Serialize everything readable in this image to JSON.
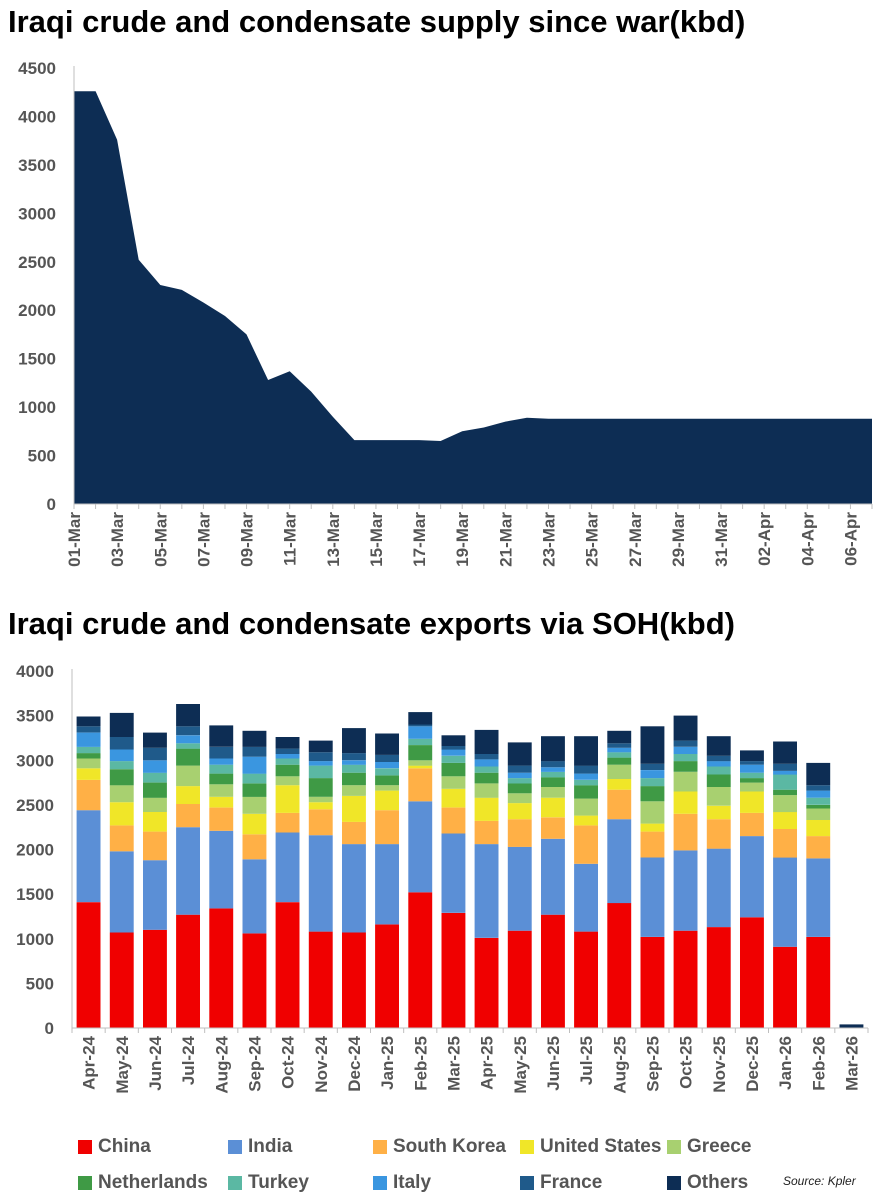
{
  "chart_data": [
    {
      "type": "area",
      "title": "Iraqi crude and condensate supply since war(kbd)",
      "color": "#0d2d54",
      "ylim": [
        0,
        4500
      ],
      "yticks": [
        0,
        500,
        1000,
        1500,
        2000,
        2500,
        3000,
        3500,
        4000,
        4500
      ],
      "x_tick_labels": [
        "01-Mar",
        "03-Mar",
        "05-Mar",
        "07-Mar",
        "09-Mar",
        "11-Mar",
        "13-Mar",
        "15-Mar",
        "17-Mar",
        "19-Mar",
        "21-Mar",
        "23-Mar",
        "25-Mar",
        "27-Mar",
        "29-Mar",
        "31-Mar",
        "02-Apr",
        "04-Apr",
        "06-Apr"
      ],
      "x": [
        "01-Mar",
        "02-Mar",
        "03-Mar",
        "04-Mar",
        "05-Mar",
        "06-Mar",
        "07-Mar",
        "08-Mar",
        "09-Mar",
        "10-Mar",
        "11-Mar",
        "12-Mar",
        "13-Mar",
        "14-Mar",
        "15-Mar",
        "16-Mar",
        "17-Mar",
        "18-Mar",
        "19-Mar",
        "20-Mar",
        "21-Mar",
        "22-Mar",
        "23-Mar",
        "24-Mar",
        "25-Mar",
        "26-Mar",
        "27-Mar",
        "28-Mar",
        "29-Mar",
        "30-Mar",
        "31-Mar",
        "01-Apr",
        "02-Apr",
        "03-Apr",
        "04-Apr",
        "05-Apr",
        "06-Apr",
        "07-Apr"
      ],
      "values": [
        4260,
        4260,
        3760,
        2520,
        2260,
        2210,
        2080,
        1940,
        1750,
        1280,
        1370,
        1160,
        900,
        660,
        660,
        660,
        660,
        650,
        750,
        790,
        850,
        890,
        880,
        880,
        880,
        880,
        880,
        880,
        880,
        880,
        880,
        880,
        880,
        880,
        880,
        880,
        880,
        880
      ]
    },
    {
      "type": "bar",
      "stacked": true,
      "title": "Iraqi crude and condensate exports via SOH(kbd)",
      "ylim": [
        0,
        4000
      ],
      "yticks": [
        0,
        500,
        1000,
        1500,
        2000,
        2500,
        3000,
        3500,
        4000
      ],
      "categories": [
        "Apr-24",
        "May-24",
        "Jun-24",
        "Jul-24",
        "Aug-24",
        "Sep-24",
        "Oct-24",
        "Nov-24",
        "Dec-24",
        "Jan-25",
        "Feb-25",
        "Mar-25",
        "Apr-25",
        "May-25",
        "Jun-25",
        "Jul-25",
        "Aug-25",
        "Sep-25",
        "Oct-25",
        "Nov-25",
        "Dec-25",
        "Jan-26",
        "Feb-26",
        "Mar-26"
      ],
      "series": [
        {
          "name": "China",
          "color": "#f00000",
          "values": [
            1410,
            1070,
            1100,
            1270,
            1340,
            1060,
            1410,
            1080,
            1070,
            1160,
            1520,
            1290,
            1010,
            1090,
            1270,
            1080,
            1400,
            1020,
            1090,
            1130,
            1240,
            910,
            1020,
            0
          ]
        },
        {
          "name": "India",
          "color": "#5b8fd6",
          "values": [
            1030,
            910,
            780,
            980,
            870,
            830,
            780,
            1080,
            990,
            900,
            1020,
            890,
            1050,
            940,
            850,
            760,
            940,
            890,
            900,
            880,
            910,
            1000,
            880,
            0
          ]
        },
        {
          "name": "South Korea",
          "color": "#ffb046",
          "values": [
            340,
            290,
            320,
            260,
            260,
            280,
            220,
            290,
            250,
            380,
            370,
            290,
            260,
            310,
            240,
            430,
            330,
            290,
            410,
            330,
            260,
            320,
            250,
            0
          ]
        },
        {
          "name": "United States",
          "color": "#f0e628",
          "values": [
            130,
            260,
            220,
            200,
            120,
            230,
            310,
            80,
            290,
            220,
            30,
            210,
            260,
            180,
            220,
            110,
            120,
            90,
            250,
            150,
            240,
            190,
            180,
            0
          ]
        },
        {
          "name": "Greece",
          "color": "#a8d070",
          "values": [
            110,
            190,
            160,
            230,
            140,
            190,
            100,
            60,
            120,
            60,
            60,
            140,
            160,
            110,
            120,
            190,
            160,
            250,
            220,
            210,
            100,
            190,
            130,
            0
          ]
        },
        {
          "name": "Netherlands",
          "color": "#3f9a45",
          "values": [
            60,
            180,
            170,
            190,
            120,
            150,
            130,
            210,
            140,
            110,
            170,
            150,
            120,
            110,
            110,
            150,
            80,
            170,
            120,
            140,
            50,
            60,
            40,
            0
          ]
        },
        {
          "name": "Turkey",
          "color": "#5bb8a3",
          "values": [
            70,
            90,
            110,
            60,
            100,
            110,
            70,
            140,
            90,
            80,
            70,
            80,
            70,
            60,
            60,
            60,
            60,
            90,
            80,
            90,
            60,
            170,
            80,
            0
          ]
        },
        {
          "name": "Italy",
          "color": "#3a96e0",
          "values": [
            160,
            130,
            140,
            90,
            70,
            190,
            50,
            50,
            50,
            70,
            140,
            70,
            80,
            60,
            50,
            70,
            50,
            90,
            80,
            60,
            90,
            40,
            80,
            0
          ]
        },
        {
          "name": "France",
          "color": "#1f5a8a",
          "values": [
            70,
            140,
            140,
            100,
            130,
            110,
            60,
            100,
            80,
            80,
            20,
            40,
            60,
            80,
            70,
            90,
            50,
            70,
            70,
            60,
            40,
            80,
            60,
            0
          ]
        },
        {
          "name": "Others",
          "color": "#0d2d54",
          "values": [
            110,
            270,
            170,
            250,
            240,
            180,
            130,
            130,
            280,
            240,
            140,
            120,
            270,
            260,
            280,
            330,
            140,
            420,
            280,
            220,
            120,
            250,
            250,
            40
          ]
        }
      ]
    }
  ],
  "titles": {
    "supply": "Iraqi crude and condensate supply since war(kbd)",
    "exports": "Iraqi crude and condensate exports via SOH(kbd)"
  },
  "source": "Source: Kpler"
}
